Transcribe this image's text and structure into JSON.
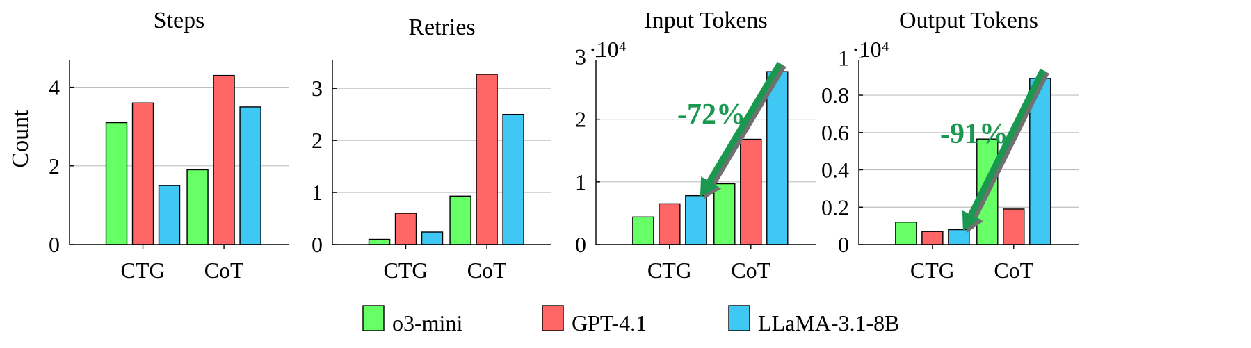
{
  "y_axis_label": "Count",
  "legend": [
    {
      "name": "o3-mini",
      "color": "#66ff66"
    },
    {
      "name": "GPT-4.1",
      "color": "#ff6666"
    },
    {
      "name": "LLaMA-3.1-8B",
      "color": "#40c8f4"
    }
  ],
  "chart_data": [
    {
      "type": "bar",
      "title": "Steps",
      "categories": [
        "CTG",
        "CoT"
      ],
      "series": [
        {
          "name": "o3-mini",
          "values": [
            3.1,
            1.9
          ]
        },
        {
          "name": "GPT-4.1",
          "values": [
            3.6,
            4.3
          ]
        },
        {
          "name": "LLaMA-3.1-8B",
          "values": [
            1.5,
            3.5
          ]
        }
      ],
      "ylabel": "Count",
      "ylim": [
        0,
        4.7
      ],
      "yticks": [
        0,
        2,
        4
      ],
      "ytick_labels": [
        "0",
        "2",
        "4"
      ],
      "multiplier": "",
      "grid": true
    },
    {
      "type": "bar",
      "title": "Retries",
      "categories": [
        "CTG",
        "CoT"
      ],
      "series": [
        {
          "name": "o3-mini",
          "values": [
            0.1,
            0.93
          ]
        },
        {
          "name": "GPT-4.1",
          "values": [
            0.6,
            3.27
          ]
        },
        {
          "name": "LLaMA-3.1-8B",
          "values": [
            0.24,
            2.5
          ]
        }
      ],
      "ylim": [
        0,
        3.55
      ],
      "yticks": [
        0,
        1,
        2,
        3
      ],
      "ytick_labels": [
        "0",
        "1",
        "2",
        "3"
      ],
      "multiplier": "",
      "grid": true
    },
    {
      "type": "bar",
      "title": "Input Tokens",
      "categories": [
        "CTG",
        "CoT"
      ],
      "series": [
        {
          "name": "o3-mini",
          "values": [
            4400,
            9700
          ]
        },
        {
          "name": "GPT-4.1",
          "values": [
            6500,
            16800
          ]
        },
        {
          "name": "LLaMA-3.1-8B",
          "values": [
            7800,
            27600
          ]
        }
      ],
      "ylim": [
        0,
        29500
      ],
      "yticks": [
        0,
        10000,
        20000,
        30000
      ],
      "ytick_labels": [
        "0",
        "1",
        "2",
        "3"
      ],
      "multiplier": "·10⁴",
      "grid": true,
      "annotation": {
        "text": "-72%",
        "from": [
          "CoT",
          "LLaMA-3.1-8B"
        ],
        "to": [
          "CTG",
          "LLaMA-3.1-8B"
        ]
      }
    },
    {
      "type": "bar",
      "title": "Output Tokens",
      "categories": [
        "CTG",
        "CoT"
      ],
      "series": [
        {
          "name": "o3-mini",
          "values": [
            1200,
            5650
          ]
        },
        {
          "name": "GPT-4.1",
          "values": [
            700,
            1900
          ]
        },
        {
          "name": "LLaMA-3.1-8B",
          "values": [
            800,
            8900
          ]
        }
      ],
      "ylim": [
        0,
        9900
      ],
      "yticks": [
        0,
        2000,
        4000,
        6000,
        8000,
        10000
      ],
      "ytick_labels": [
        "0",
        "0.2",
        "0.4",
        "0.6",
        "0.8",
        "1"
      ],
      "multiplier": "·10⁴",
      "grid": true,
      "annotation": {
        "text": "-91%",
        "from": [
          "CoT",
          "LLaMA-3.1-8B"
        ],
        "to": [
          "CTG",
          "LLaMA-3.1-8B"
        ]
      }
    }
  ]
}
